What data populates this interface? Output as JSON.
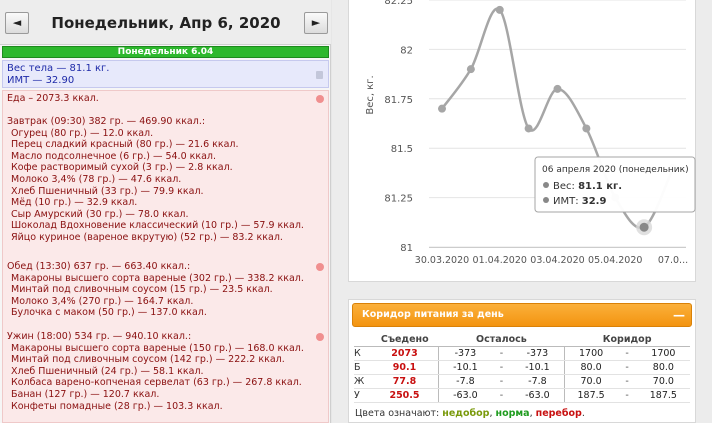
{
  "datebar": {
    "prev_label": "◄",
    "next_label": "►",
    "title": "Понедельник, Апр 6, 2020"
  },
  "day_strip": "Понедельник 6.04",
  "weight": {
    "line1": "Вес тела — 81.1 кг.",
    "line2": "ИМТ — 32.90"
  },
  "food": {
    "total": "Еда – 2073.3 ккал.",
    "meals": [
      {
        "title": "Завтрак (09:30) 382 гр. — 469.90 ккал.:",
        "items": [
          "Огурец (80 гр.) — 12.0 ккал.",
          "Перец сладкий красный (80 гр.) — 21.6 ккал.",
          "Масло подсолнечное (6 гр.) — 54.0 ккал.",
          "Кофе растворимый сухой (3 гр.) — 2.8 ккал.",
          "Молоко 3,4% (78 гр.) — 47.6 ккал.",
          "Хлеб Пшеничный (33 гр.) — 79.9 ккал.",
          "Мёд (10 гр.) — 32.9 ккал.",
          "Сыр Амурский (30 гр.) — 78.0 ккал.",
          "Шоколад Вдохновение классический (10 гр.) — 57.9 ккал.",
          "Яйцо куриное (вареное вкрутую) (52 гр.) — 83.2 ккал."
        ]
      },
      {
        "title": "Обед (13:30) 637 гр. — 663.40 ккал.:",
        "items": [
          "Макароны высшего сорта вареные (302 гр.) — 338.2 ккал.",
          "Минтай под сливочным соусом (15 гр.) — 23.5 ккал.",
          "Молоко 3,4% (270 гр.) — 164.7 ккал.",
          "Булочка с маком (50 гр.) — 137.0 ккал."
        ]
      },
      {
        "title": "Ужин (18:00) 534 гр. — 940.10 ккал.:",
        "items": [
          "Макароны высшего сорта вареные (150 гр.) — 168.0 ккал.",
          "Минтай под сливочным соусом (142 гр.) — 222.2 ккал.",
          "Хлеб Пшеничный (24 гр.) — 58.1 ккал.",
          "Колбаса варено-копченая сервелат (63 гр.) — 267.8 ккал.",
          "Банан (127 гр.) — 120.7 ккал.",
          "Конфеты помадные (28 гр.) — 103.3 ккал."
        ]
      }
    ]
  },
  "chart_data": {
    "type": "line",
    "ylabel": "Вес, кг.",
    "ylim": [
      81,
      82.25
    ],
    "yticks": [
      "81",
      "81.25",
      "81.5",
      "81.75",
      "82",
      "82.25"
    ],
    "xticks": [
      "30.03.2020",
      "01.04.2020",
      "03.04.2020",
      "05.04.2020",
      "07.0..."
    ],
    "x": [
      "30.03.2020",
      "31.03.2020",
      "01.04.2020",
      "02.04.2020",
      "03.04.2020",
      "04.04.2020",
      "05.04.2020",
      "06.04.2020",
      "07.04.2020"
    ],
    "series": [
      {
        "values": [
          81.7,
          81.9,
          82.2,
          81.6,
          81.8,
          81.6,
          81.25,
          81.1,
          81.4
        ]
      }
    ],
    "highlight_index": 7,
    "tooltip": {
      "date": "06 апреля 2020 (понедельник)",
      "weight_label": "Вес:",
      "weight_value": "81.1 кг.",
      "bmi_label": "ИМТ:",
      "bmi_value": "32.9"
    },
    "colors": {
      "line": "#a6a6a6",
      "grid": "#e4e4e4",
      "highlight": "#888888"
    }
  },
  "corridor": {
    "title": "Коридор питания за день",
    "minimize_label": "—",
    "headers": [
      "Съедено",
      "Осталось",
      "Коридор"
    ],
    "rows": [
      {
        "label": "К",
        "eaten": "2073",
        "left_a": "-373",
        "left_b": "-373",
        "cor_a": "1700",
        "cor_b": "1700"
      },
      {
        "label": "Б",
        "eaten": "90.1",
        "left_a": "-10.1",
        "left_b": "-10.1",
        "cor_a": "80.0",
        "cor_b": "80.0"
      },
      {
        "label": "Ж",
        "eaten": "77.8",
        "left_a": "-7.8",
        "left_b": "-7.8",
        "cor_a": "70.0",
        "cor_b": "70.0"
      },
      {
        "label": "У",
        "eaten": "250.5",
        "left_a": "-63.0",
        "left_b": "-63.0",
        "cor_a": "187.5",
        "cor_b": "187.5"
      }
    ],
    "dash": "-",
    "legend_prefix": "Цвета означают: ",
    "legend_under": "недобор",
    "legend_norm": "норма",
    "legend_over": "перебор",
    "legend_sep": ", ",
    "legend_end": ".",
    "colors": {
      "eaten": "#c81010",
      "under": "#7a9a0c",
      "norm": "#1f9c1f",
      "over": "#c81010",
      "header": "#f39410"
    }
  }
}
